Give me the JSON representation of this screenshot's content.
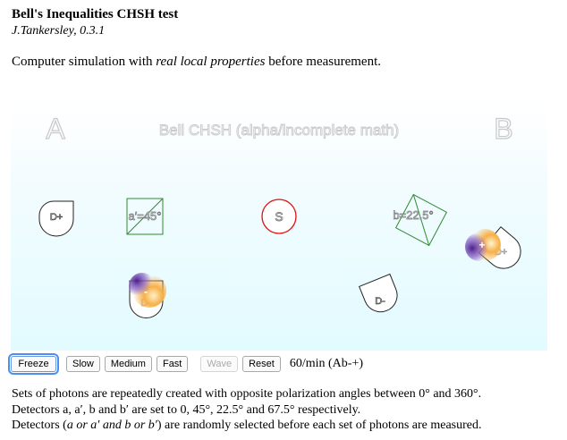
{
  "header": {
    "title": "Bell's Inequalities CHSH test",
    "author": "J.Tankersley, 0.3.1"
  },
  "intro": {
    "prefix": "Computer simulation with ",
    "emphasis": "real local properties",
    "suffix": " before measurement."
  },
  "canvas": {
    "label_a": "A",
    "label_b": "B",
    "caption": "Bell CHSH (alpha/incomplete math)",
    "source_label": "S",
    "detector_a_plus": "D+",
    "detector_a_minus": "D-",
    "detector_b_plus": "D+",
    "detector_b_minus": "D-",
    "polarizer_a_label": "a′=45°",
    "polarizer_b_label": "b=22.5°",
    "photon_a_sign": "-",
    "photon_b_sign": "+"
  },
  "controls": {
    "freeze": "Freeze",
    "slow": "Slow",
    "medium": "Medium",
    "fast": "Fast",
    "wave": "Wave",
    "reset": "Reset",
    "rate": "60/min (Ab-+)"
  },
  "description": {
    "line1": "Sets of photons are repeatedly created with opposite polarization angles between 0° and 360°.",
    "line2": "Detectors a, a′, b and b′ are set to 0, 45°, 22.5° and 67.5° respectively.",
    "line3_prefix": "Detectors (",
    "line3_em": "a or a′ and b or b′",
    "line3_suffix": ") are randomly selected before each set of photons are measured."
  },
  "colors": {
    "polarizer": "#2e8b2e",
    "source_ring": "#dd1111",
    "canvas_text": "#c8c8c8",
    "photon_orange": "#f5a623",
    "photon_purple": "#6a2fa8",
    "focus": "#4d8ff0"
  }
}
